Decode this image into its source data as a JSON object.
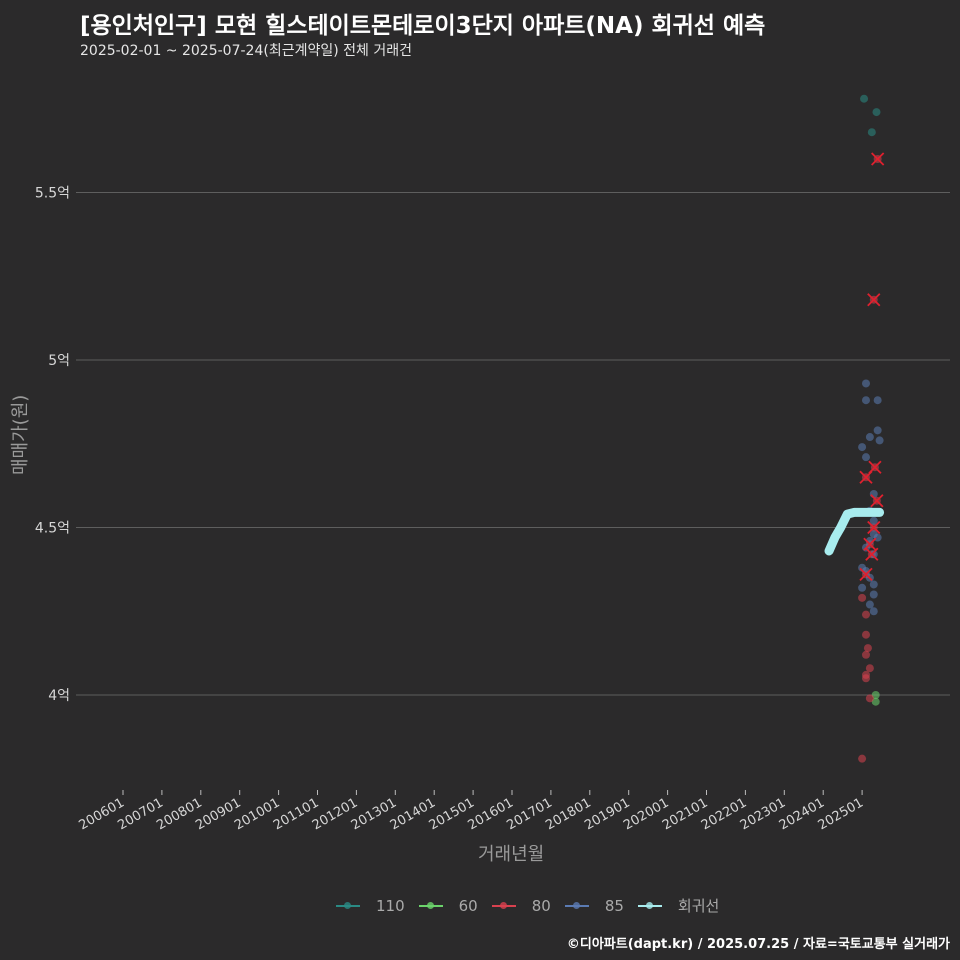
{
  "header": {
    "title": "[용인처인구] 모현 힐스테이트몬테로이3단지 아파트(NA) 회귀선 예측",
    "subtitle": "2025-02-01 ~ 2025-07-24(최근계약일) 전체 거래건"
  },
  "footer": {
    "credit": "©디아파트(dapt.kr) / 2025.07.25 / 자료=국토교통부 실거래가"
  },
  "chart_data": {
    "type": "scatter",
    "title": "[용인처인구] 모현 힐스테이트몬테로이3단지 아파트(NA) 회귀선 예측",
    "subtitle": "2025-02-01 ~ 2025-07-24(최근계약일) 전체 거래건",
    "xlabel": "거래년월",
    "ylabel": "매매가(원)",
    "y_ticks": [
      "4억",
      "4.5억",
      "5억",
      "5.5억"
    ],
    "y_tick_values": [
      4.0,
      4.5,
      5.0,
      5.5
    ],
    "ylim": [
      3.75,
      5.8
    ],
    "x_ticks": [
      "200601",
      "200701",
      "200801",
      "200901",
      "201001",
      "201101",
      "201201",
      "201301",
      "201401",
      "201501",
      "201601",
      "201701",
      "201801",
      "201901",
      "202001",
      "202101",
      "202201",
      "202301",
      "202401",
      "202501"
    ],
    "grid": "horizontal",
    "legend_position": "bottom",
    "legend": [
      {
        "name": "110",
        "color": "#2a8a84"
      },
      {
        "name": "60",
        "color": "#6bd36b"
      },
      {
        "name": "80",
        "color": "#d9414f"
      },
      {
        "name": "85",
        "color": "#5b7bb3"
      },
      {
        "name": "회귀선",
        "color": "#a8ecee"
      }
    ],
    "series": [
      {
        "name": "110",
        "points": [
          [
            2025.05,
            5.78
          ],
          [
            2025.37,
            5.74
          ],
          [
            2025.25,
            5.68
          ]
        ]
      },
      {
        "name": "60",
        "points": [
          [
            2025.35,
            4.0
          ],
          [
            2025.35,
            3.98
          ]
        ]
      },
      {
        "name": "80",
        "points": [
          [
            2025.4,
            5.6
          ],
          [
            2025.3,
            5.18
          ],
          [
            2025.33,
            4.68
          ],
          [
            2025.1,
            4.65
          ],
          [
            2025.38,
            4.58
          ],
          [
            2025.3,
            4.5
          ],
          [
            2025.2,
            4.45
          ],
          [
            2025.25,
            4.42
          ],
          [
            2025.1,
            4.36
          ],
          [
            2025.0,
            4.29
          ],
          [
            2025.1,
            4.24
          ],
          [
            2025.1,
            4.18
          ],
          [
            2025.15,
            4.14
          ],
          [
            2025.1,
            4.12
          ],
          [
            2025.2,
            4.08
          ],
          [
            2025.1,
            4.06
          ],
          [
            2025.1,
            4.05
          ],
          [
            2025.2,
            3.99
          ],
          [
            2025.0,
            3.81
          ]
        ]
      },
      {
        "name": "85",
        "points": [
          [
            2025.1,
            4.93
          ],
          [
            2025.1,
            4.88
          ],
          [
            2025.4,
            4.88
          ],
          [
            2025.4,
            4.79
          ],
          [
            2025.2,
            4.77
          ],
          [
            2025.45,
            4.76
          ],
          [
            2025.0,
            4.74
          ],
          [
            2025.1,
            4.71
          ],
          [
            2025.3,
            4.6
          ],
          [
            2025.2,
            4.55
          ],
          [
            2025.3,
            4.52
          ],
          [
            2025.3,
            4.48
          ],
          [
            2025.4,
            4.47
          ],
          [
            2025.2,
            4.46
          ],
          [
            2025.1,
            4.44
          ],
          [
            2025.3,
            4.42
          ],
          [
            2025.0,
            4.38
          ],
          [
            2025.1,
            4.37
          ],
          [
            2025.2,
            4.35
          ],
          [
            2025.3,
            4.33
          ],
          [
            2025.0,
            4.32
          ],
          [
            2025.3,
            4.3
          ],
          [
            2025.2,
            4.27
          ],
          [
            2025.3,
            4.25
          ]
        ]
      },
      {
        "name": "회귀선",
        "points": [
          [
            2024.15,
            4.43
          ],
          [
            2024.3,
            4.47
          ],
          [
            2024.45,
            4.5
          ],
          [
            2024.62,
            4.54
          ],
          [
            2024.8,
            4.545
          ],
          [
            2025.1,
            4.545
          ],
          [
            2025.45,
            4.545
          ]
        ]
      }
    ],
    "outliers_marked_x": [
      [
        2025.4,
        5.6
      ],
      [
        2025.3,
        5.18
      ],
      [
        2025.33,
        4.68
      ],
      [
        2025.1,
        4.65
      ],
      [
        2025.38,
        4.58
      ],
      [
        2025.3,
        4.5
      ],
      [
        2025.2,
        4.45
      ],
      [
        2025.25,
        4.42
      ],
      [
        2025.1,
        4.36
      ]
    ]
  }
}
